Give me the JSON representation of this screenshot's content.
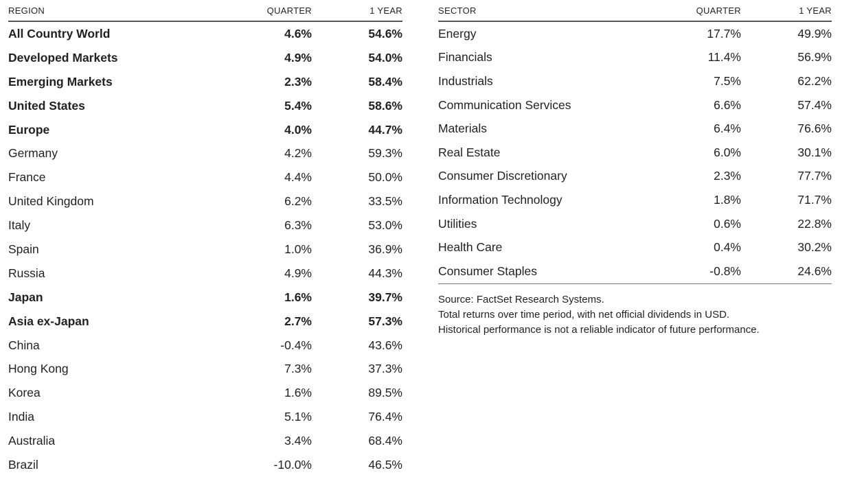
{
  "region_table": {
    "headers": {
      "name": "REGION",
      "quarter": "QUARTER",
      "year": "1 YEAR"
    },
    "rows": [
      {
        "name": "All Country World",
        "quarter": "4.6%",
        "year": "54.6%",
        "bold": true
      },
      {
        "name": "Developed Markets",
        "quarter": "4.9%",
        "year": "54.0%",
        "bold": true
      },
      {
        "name": "Emerging Markets",
        "quarter": "2.3%",
        "year": "58.4%",
        "bold": true
      },
      {
        "name": "United States",
        "quarter": "5.4%",
        "year": "58.6%",
        "bold": true
      },
      {
        "name": "Europe",
        "quarter": "4.0%",
        "year": "44.7%",
        "bold": true
      },
      {
        "name": "Germany",
        "quarter": "4.2%",
        "year": "59.3%",
        "bold": false
      },
      {
        "name": "France",
        "quarter": "4.4%",
        "year": "50.0%",
        "bold": false
      },
      {
        "name": "United Kingdom",
        "quarter": "6.2%",
        "year": "33.5%",
        "bold": false
      },
      {
        "name": "Italy",
        "quarter": "6.3%",
        "year": "53.0%",
        "bold": false
      },
      {
        "name": "Spain",
        "quarter": "1.0%",
        "year": "36.9%",
        "bold": false
      },
      {
        "name": "Russia",
        "quarter": "4.9%",
        "year": "44.3%",
        "bold": false
      },
      {
        "name": "Japan",
        "quarter": "1.6%",
        "year": "39.7%",
        "bold": true
      },
      {
        "name": "Asia ex-Japan",
        "quarter": "2.7%",
        "year": "57.3%",
        "bold": true
      },
      {
        "name": "China",
        "quarter": "-0.4%",
        "year": "43.6%",
        "bold": false
      },
      {
        "name": "Hong Kong",
        "quarter": "7.3%",
        "year": "37.3%",
        "bold": false
      },
      {
        "name": "Korea",
        "quarter": "1.6%",
        "year": "89.5%",
        "bold": false
      },
      {
        "name": "India",
        "quarter": "5.1%",
        "year": "76.4%",
        "bold": false
      },
      {
        "name": "Australia",
        "quarter": "3.4%",
        "year": "68.4%",
        "bold": false
      },
      {
        "name": "Brazil",
        "quarter": "-10.0%",
        "year": "46.5%",
        "bold": false
      }
    ]
  },
  "sector_table": {
    "headers": {
      "name": "SECTOR",
      "quarter": "QUARTER",
      "year": "1 YEAR"
    },
    "rows": [
      {
        "name": "Energy",
        "quarter": "17.7%",
        "year": "49.9%"
      },
      {
        "name": "Financials",
        "quarter": "11.4%",
        "year": "56.9%"
      },
      {
        "name": "Industrials",
        "quarter": "7.5%",
        "year": "62.2%"
      },
      {
        "name": "Communication Services",
        "quarter": "6.6%",
        "year": "57.4%"
      },
      {
        "name": "Materials",
        "quarter": "6.4%",
        "year": "76.6%"
      },
      {
        "name": "Real Estate",
        "quarter": "6.0%",
        "year": "30.1%"
      },
      {
        "name": "Consumer Discretionary",
        "quarter": "2.3%",
        "year": "77.7%"
      },
      {
        "name": "Information Technology",
        "quarter": "1.8%",
        "year": "71.7%"
      },
      {
        "name": "Utilities",
        "quarter": "0.6%",
        "year": "22.8%"
      },
      {
        "name": "Health Care",
        "quarter": "0.4%",
        "year": "30.2%"
      },
      {
        "name": "Consumer Staples",
        "quarter": "-0.8%",
        "year": "24.6%"
      }
    ]
  },
  "notes": {
    "source": "Source: FactSet Research Systems.",
    "returns": "Total returns over time period, with net official dividends in USD.",
    "disclaimer": "Historical performance is not a reliable indicator of future performance."
  }
}
